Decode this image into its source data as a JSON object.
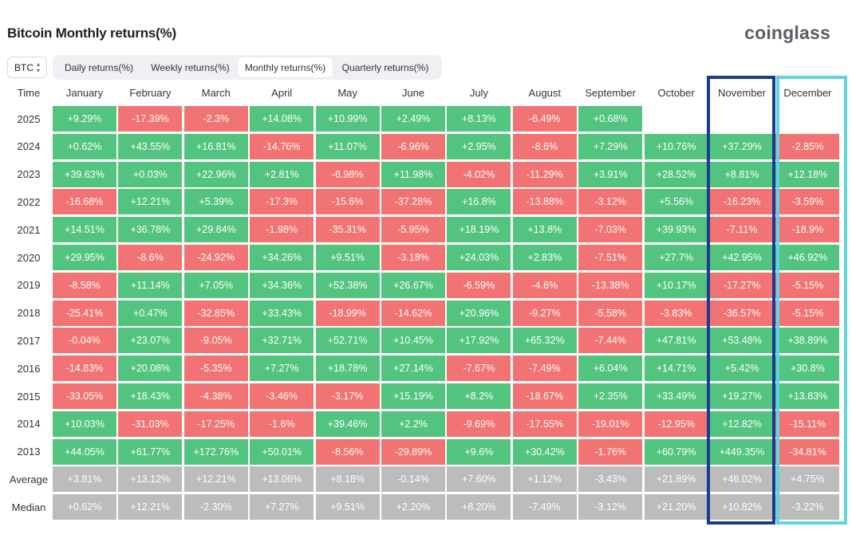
{
  "header": {
    "title": "Bitcoin Monthly returns(%)",
    "logo": "coinglass"
  },
  "controls": {
    "symbol": "BTC",
    "tabs": [
      {
        "label": "Daily returns(%)",
        "active": false
      },
      {
        "label": "Weekly returns(%)",
        "active": false
      },
      {
        "label": "Monthly returns(%)",
        "active": true
      },
      {
        "label": "Quarterly returns(%)",
        "active": false
      }
    ]
  },
  "colors": {
    "positive": "#53c47f",
    "negative": "#f27373",
    "stat": "#bcbcbc",
    "highlight_november": "#1b3b8f",
    "highlight_december": "#5fd3df"
  },
  "chart_data": {
    "type": "heatmap",
    "title": "Bitcoin Monthly returns(%)",
    "row_header": "Time",
    "columns": [
      "January",
      "February",
      "March",
      "April",
      "May",
      "June",
      "July",
      "August",
      "September",
      "October",
      "November",
      "December"
    ],
    "rows": [
      {
        "label": "2025",
        "kind": "year",
        "values": [
          "+9.29%",
          "-17.39%",
          "-2.3%",
          "+14.08%",
          "+10.99%",
          "+2.49%",
          "+8.13%",
          "-6.49%",
          "+0.68%",
          "",
          "",
          ""
        ]
      },
      {
        "label": "2024",
        "kind": "year",
        "values": [
          "+0.62%",
          "+43.55%",
          "+16.81%",
          "-14.76%",
          "+11.07%",
          "-6.96%",
          "+2.95%",
          "-8.6%",
          "+7.29%",
          "+10.76%",
          "+37.29%",
          "-2.85%"
        ]
      },
      {
        "label": "2023",
        "kind": "year",
        "values": [
          "+39.63%",
          "+0.03%",
          "+22.96%",
          "+2.81%",
          "-6.98%",
          "+11.98%",
          "-4.02%",
          "-11.29%",
          "+3.91%",
          "+28.52%",
          "+8.81%",
          "+12.18%"
        ]
      },
      {
        "label": "2022",
        "kind": "year",
        "values": [
          "-16.68%",
          "+12.21%",
          "+5.39%",
          "-17.3%",
          "-15.6%",
          "-37.28%",
          "+16.8%",
          "-13.88%",
          "-3.12%",
          "+5.56%",
          "-16.23%",
          "-3.59%"
        ]
      },
      {
        "label": "2021",
        "kind": "year",
        "values": [
          "+14.51%",
          "+36.78%",
          "+29.84%",
          "-1.98%",
          "-35.31%",
          "-5.95%",
          "+18.19%",
          "+13.8%",
          "-7.03%",
          "+39.93%",
          "-7.11%",
          "-18.9%"
        ]
      },
      {
        "label": "2020",
        "kind": "year",
        "values": [
          "+29.95%",
          "-8.6%",
          "-24.92%",
          "+34.26%",
          "+9.51%",
          "-3.18%",
          "+24.03%",
          "+2.83%",
          "-7.51%",
          "+27.7%",
          "+42.95%",
          "+46.92%"
        ]
      },
      {
        "label": "2019",
        "kind": "year",
        "values": [
          "-8.58%",
          "+11.14%",
          "+7.05%",
          "+34.36%",
          "+52.38%",
          "+26.67%",
          "-6.59%",
          "-4.6%",
          "-13.38%",
          "+10.17%",
          "-17.27%",
          "-5.15%"
        ]
      },
      {
        "label": "2018",
        "kind": "year",
        "values": [
          "-25.41%",
          "+0.47%",
          "-32.85%",
          "+33.43%",
          "-18.99%",
          "-14.62%",
          "+20.96%",
          "-9.27%",
          "-5.58%",
          "-3.83%",
          "-36.57%",
          "-5.15%"
        ]
      },
      {
        "label": "2017",
        "kind": "year",
        "values": [
          "-0.04%",
          "+23.07%",
          "-9.05%",
          "+32.71%",
          "+52.71%",
          "+10.45%",
          "+17.92%",
          "+65.32%",
          "-7.44%",
          "+47.81%",
          "+53.48%",
          "+38.89%"
        ]
      },
      {
        "label": "2016",
        "kind": "year",
        "values": [
          "-14.83%",
          "+20.08%",
          "-5.35%",
          "+7.27%",
          "+18.78%",
          "+27.14%",
          "-7.67%",
          "-7.49%",
          "+6.04%",
          "+14.71%",
          "+5.42%",
          "+30.8%"
        ]
      },
      {
        "label": "2015",
        "kind": "year",
        "values": [
          "-33.05%",
          "+18.43%",
          "-4.38%",
          "-3.46%",
          "-3.17%",
          "+15.19%",
          "+8.2%",
          "-18.67%",
          "+2.35%",
          "+33.49%",
          "+19.27%",
          "+13.83%"
        ]
      },
      {
        "label": "2014",
        "kind": "year",
        "values": [
          "+10.03%",
          "-31.03%",
          "-17.25%",
          "-1.6%",
          "+39.46%",
          "+2.2%",
          "-9.69%",
          "-17.55%",
          "-19.01%",
          "-12.95%",
          "+12.82%",
          "-15.11%"
        ]
      },
      {
        "label": "2013",
        "kind": "year",
        "values": [
          "+44.05%",
          "+61.77%",
          "+172.76%",
          "+50.01%",
          "-8.56%",
          "-29.89%",
          "+9.6%",
          "+30.42%",
          "-1.76%",
          "+60.79%",
          "+449.35%",
          "-34.81%"
        ]
      },
      {
        "label": "Average",
        "kind": "stat",
        "values": [
          "+3.81%",
          "+13.12%",
          "+12.21%",
          "+13.06%",
          "+8.18%",
          "-0.14%",
          "+7.60%",
          "+1.12%",
          "-3.43%",
          "+21.89%",
          "+46.02%",
          "+4.75%"
        ]
      },
      {
        "label": "Median",
        "kind": "stat",
        "values": [
          "+0.62%",
          "+12.21%",
          "-2.30%",
          "+7.27%",
          "+9.51%",
          "+2.20%",
          "+8.20%",
          "-7.49%",
          "-3.12%",
          "+21.20%",
          "+10.82%",
          "-3.22%"
        ]
      }
    ],
    "highlighted_columns": [
      "November",
      "December"
    ]
  }
}
